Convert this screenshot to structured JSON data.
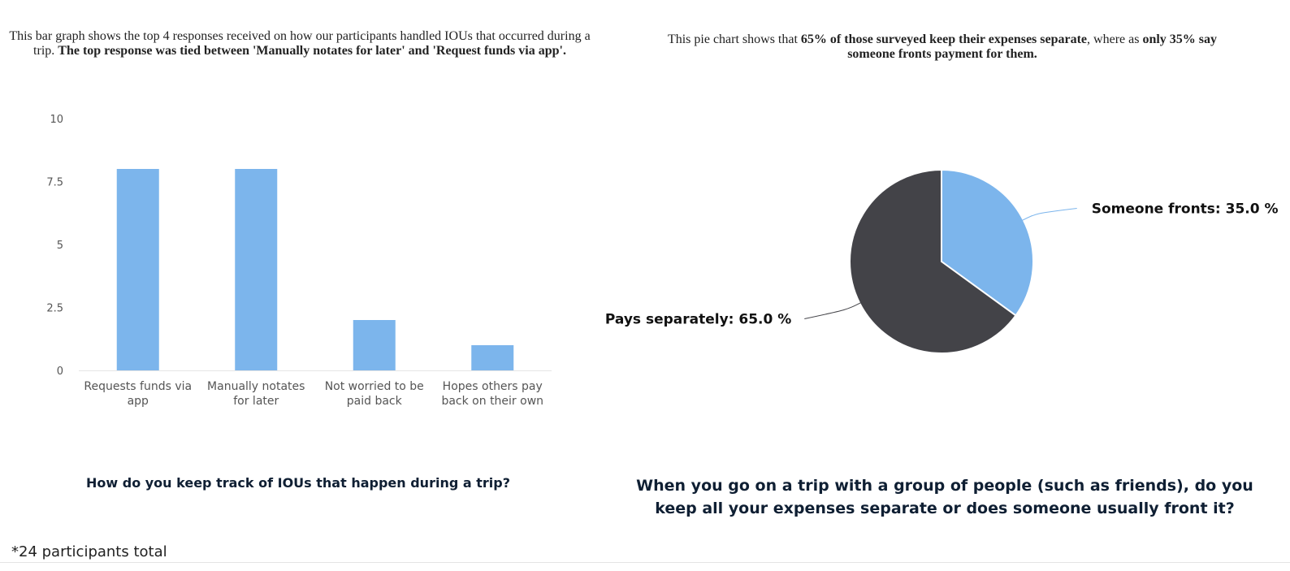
{
  "bar_caption": {
    "normal": "This bar graph shows the top 4 responses received on how our participants handled IOUs that occurred during a trip. ",
    "bold": "The top response was tied between 'Manually notates for later' and 'Request funds via app'."
  },
  "pie_caption": {
    "p1": "This pie chart shows that ",
    "b1": "65% of those surveyed keep their expenses separate",
    "p2": ", where as ",
    "b2": "only 35% say someone fronts payment for them."
  },
  "questions": {
    "bar": "How do you keep track of IOUs that happen during a trip?",
    "pie": "When you go on a trip with a group of people (such as friends), do you keep all your expenses separate or does someone usually front it?"
  },
  "footnote": "*24 participants total",
  "chart_data": [
    {
      "type": "bar",
      "categories": [
        [
          "Requests funds via",
          "app"
        ],
        [
          "Manually notates",
          "for later"
        ],
        [
          "Not worried to be",
          "paid back"
        ],
        [
          "Hopes others pay",
          "back on their own"
        ]
      ],
      "values": [
        8,
        8,
        2,
        1
      ],
      "ylim": [
        0,
        10
      ],
      "yticks": [
        "0",
        "2.5",
        "5",
        "7.5",
        "10"
      ],
      "ytick_values": [
        0,
        2.5,
        5,
        7.5,
        10
      ],
      "grid": false,
      "color": "#7cb5ec"
    },
    {
      "type": "pie",
      "slices": [
        {
          "label": "Someone fronts: 35.0 %",
          "value": 35.0,
          "color": "#7cb5ec"
        },
        {
          "label": "Pays separately: 65.0 %",
          "value": 65.0,
          "color": "#434348"
        }
      ]
    }
  ]
}
